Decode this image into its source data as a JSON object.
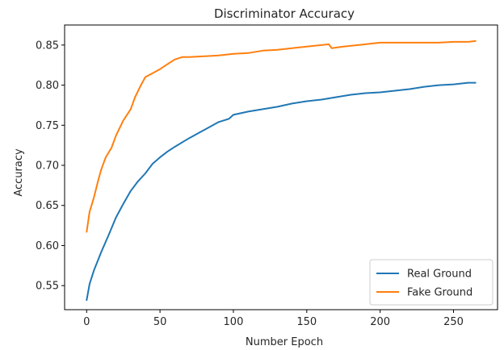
{
  "chart_data": {
    "type": "line",
    "title": "Discriminator Accuracy",
    "xlabel": "Number Epoch",
    "ylabel": "Accuracy",
    "xlim": [
      -15,
      280
    ],
    "ylim": [
      0.52,
      0.875
    ],
    "xticks": [
      0,
      50,
      100,
      150,
      200,
      250
    ],
    "yticks": [
      0.55,
      0.6,
      0.65,
      0.7,
      0.75,
      0.8,
      0.85
    ],
    "grid": false,
    "legend_position": "lower-right",
    "series": [
      {
        "name": "Real Ground",
        "color": "#1f77b4",
        "points": [
          [
            0,
            0.532
          ],
          [
            2,
            0.552
          ],
          [
            5,
            0.569
          ],
          [
            10,
            0.592
          ],
          [
            15,
            0.613
          ],
          [
            20,
            0.635
          ],
          [
            25,
            0.652
          ],
          [
            30,
            0.668
          ],
          [
            35,
            0.68
          ],
          [
            40,
            0.69
          ],
          [
            45,
            0.702
          ],
          [
            50,
            0.71
          ],
          [
            55,
            0.717
          ],
          [
            60,
            0.723
          ],
          [
            70,
            0.734
          ],
          [
            80,
            0.744
          ],
          [
            90,
            0.754
          ],
          [
            97,
            0.758
          ],
          [
            100,
            0.763
          ],
          [
            110,
            0.767
          ],
          [
            120,
            0.77
          ],
          [
            130,
            0.773
          ],
          [
            140,
            0.777
          ],
          [
            150,
            0.78
          ],
          [
            160,
            0.782
          ],
          [
            170,
            0.785
          ],
          [
            180,
            0.788
          ],
          [
            190,
            0.79
          ],
          [
            200,
            0.791
          ],
          [
            210,
            0.793
          ],
          [
            220,
            0.795
          ],
          [
            230,
            0.798
          ],
          [
            240,
            0.8
          ],
          [
            250,
            0.801
          ],
          [
            260,
            0.803
          ],
          [
            265,
            0.803
          ]
        ]
      },
      {
        "name": "Fake Ground",
        "color": "#ff7f0e",
        "points": [
          [
            0,
            0.617
          ],
          [
            2,
            0.642
          ],
          [
            5,
            0.66
          ],
          [
            8,
            0.682
          ],
          [
            10,
            0.695
          ],
          [
            13,
            0.71
          ],
          [
            17,
            0.722
          ],
          [
            20,
            0.737
          ],
          [
            25,
            0.756
          ],
          [
            30,
            0.77
          ],
          [
            33,
            0.785
          ],
          [
            37,
            0.8
          ],
          [
            40,
            0.81
          ],
          [
            45,
            0.815
          ],
          [
            50,
            0.82
          ],
          [
            55,
            0.826
          ],
          [
            60,
            0.832
          ],
          [
            65,
            0.835
          ],
          [
            70,
            0.835
          ],
          [
            80,
            0.836
          ],
          [
            90,
            0.837
          ],
          [
            100,
            0.839
          ],
          [
            110,
            0.84
          ],
          [
            120,
            0.843
          ],
          [
            130,
            0.844
          ],
          [
            140,
            0.846
          ],
          [
            150,
            0.848
          ],
          [
            160,
            0.85
          ],
          [
            165,
            0.851
          ],
          [
            167,
            0.846
          ],
          [
            175,
            0.848
          ],
          [
            185,
            0.85
          ],
          [
            200,
            0.853
          ],
          [
            210,
            0.853
          ],
          [
            220,
            0.853
          ],
          [
            230,
            0.853
          ],
          [
            240,
            0.853
          ],
          [
            250,
            0.854
          ],
          [
            260,
            0.854
          ],
          [
            265,
            0.855
          ]
        ]
      }
    ]
  }
}
